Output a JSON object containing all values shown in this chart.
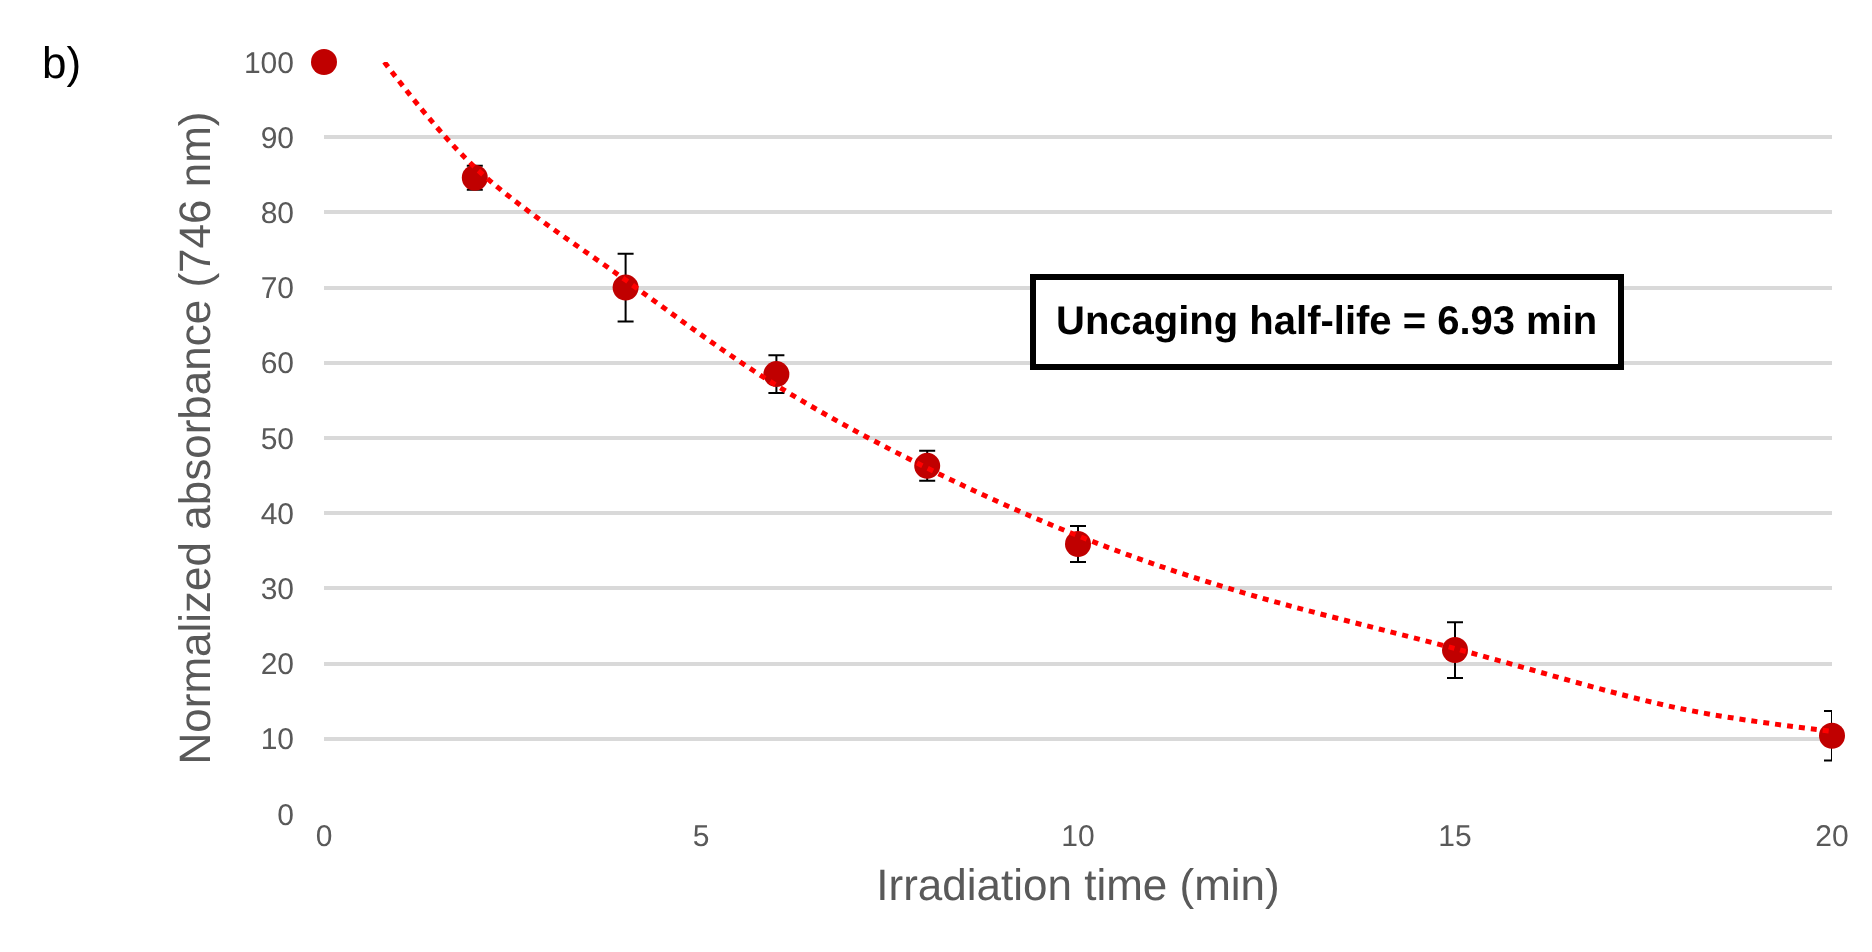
{
  "chart_data": {
    "type": "scatter",
    "xlabel": "Irradiation time (min)",
    "ylabel": "Normalized absorbance (746 nm)",
    "annotations": [
      "b)",
      "Uncaging half-life = 6.93 min"
    ],
    "xlim": [
      0,
      20
    ],
    "xticks": [
      0,
      5,
      10,
      15,
      20
    ],
    "ylim": [
      0,
      100
    ],
    "yticks": [
      0,
      10,
      20,
      30,
      40,
      50,
      60,
      70,
      80,
      90,
      100
    ],
    "grid": "y",
    "marker": "circle",
    "series": [
      {
        "color": "#c00000",
        "x": [
          0,
          2,
          4,
          6,
          8,
          10,
          15,
          20
        ],
        "values": [
          100,
          84.6,
          70,
          58.5,
          46.3,
          35.9,
          21.8,
          10.4
        ],
        "errors": [
          null,
          1.6,
          4.5,
          2.5,
          2,
          2.4,
          3.7,
          3.3
        ]
      },
      {
        "type": "line",
        "color": "#ff0000",
        "line_style": "dotted",
        "marker": "none",
        "x": [
          0.8,
          2,
          4,
          6,
          8,
          10,
          12,
          15,
          18,
          20
        ],
        "values": [
          100,
          86,
          71,
          57,
          46,
          37,
          30,
          22,
          14,
          11
        ]
      }
    ]
  }
}
